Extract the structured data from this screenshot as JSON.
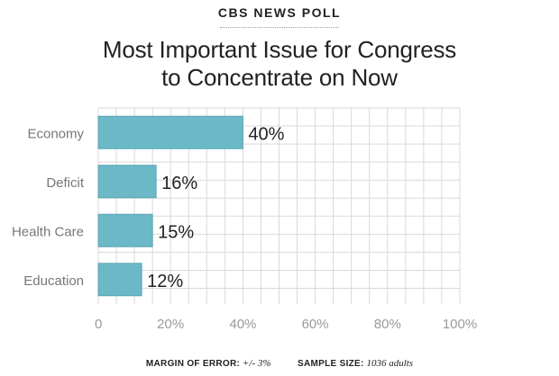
{
  "header": {
    "kicker": "CBS NEWS POLL",
    "title_line1": "Most Important Issue for Congress",
    "title_line2": "to Concentrate on Now"
  },
  "footer": {
    "margin_label": "MARGIN OF ERROR:",
    "margin_value": "+/- 3%",
    "sample_label": "SAMPLE SIZE:",
    "sample_value": "1036 adults"
  },
  "colors": {
    "bar": "#6bb8c6",
    "bar_edge": "#5aa6b5",
    "grid": "#d9d9d9",
    "axis_text": "#9a9a9a",
    "category_text": "#777777",
    "value_text": "#222222"
  },
  "chart_data": {
    "type": "bar",
    "orientation": "horizontal",
    "categories": [
      "Economy",
      "Deficit",
      "Health Care",
      "Education"
    ],
    "values": [
      40,
      16,
      15,
      12
    ],
    "value_labels": [
      "40%",
      "16%",
      "15%",
      "12%"
    ],
    "xlim": [
      0,
      100
    ],
    "xticks": [
      0,
      20,
      40,
      60,
      80,
      100
    ],
    "xtick_labels": [
      "0",
      "20%",
      "40%",
      "60%",
      "80%",
      "100%"
    ],
    "grid": true
  }
}
